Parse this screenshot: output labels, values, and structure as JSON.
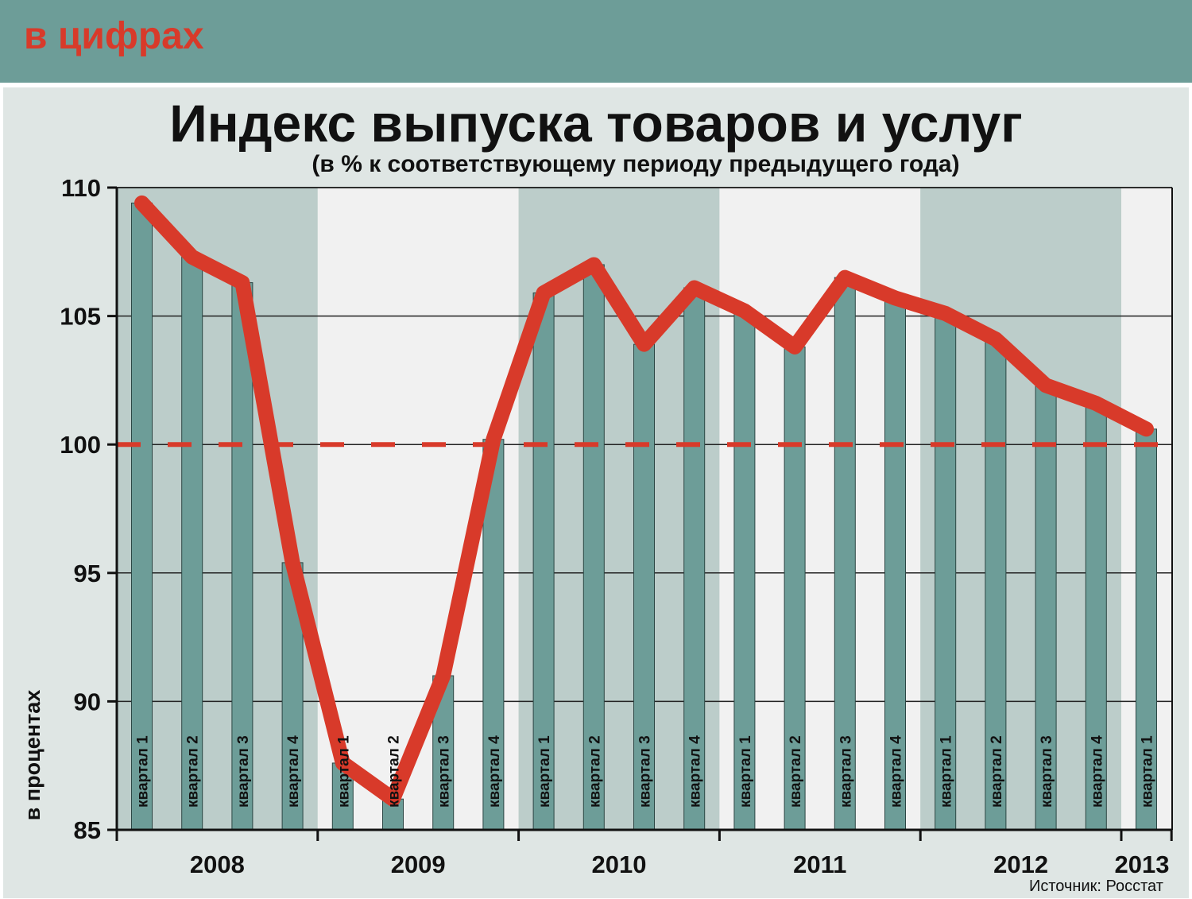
{
  "banner": {
    "label": "в цифрах"
  },
  "chart_data": {
    "type": "bar",
    "title": "Индекс выпуска товаров и услуг",
    "subtitle": "(в % к соответствующему периоду предыдущего года)",
    "ylabel": "в процентах",
    "xlabel": "",
    "ylim": [
      85,
      110
    ],
    "yticks": [
      85,
      90,
      95,
      100,
      105,
      110
    ],
    "reference_line": 100,
    "grid": true,
    "categories": [
      "квартал 1",
      "квартал 2",
      "квартал 3",
      "квартал 4",
      "квартал 1",
      "квартал 2",
      "квартал 3",
      "квартал 4",
      "квартал 1",
      "квартал 2",
      "квартал 3",
      "квартал 4",
      "квартал 1",
      "квартал 2",
      "квартал 3",
      "квартал 4",
      "квартал 1",
      "квартал 2",
      "квартал 3",
      "квартал 4",
      "квартал 1"
    ],
    "years": [
      {
        "label": "2008",
        "quarters": 4
      },
      {
        "label": "2009",
        "quarters": 4
      },
      {
        "label": "2010",
        "quarters": 4
      },
      {
        "label": "2011",
        "quarters": 4
      },
      {
        "label": "2012",
        "quarters": 4
      },
      {
        "label": "2013",
        "quarters": 1
      }
    ],
    "series": [
      {
        "type": "bar",
        "values": [
          109.4,
          107.3,
          106.3,
          95.4,
          87.6,
          86.2,
          91.0,
          100.2,
          105.9,
          107.0,
          103.9,
          106.1,
          105.2,
          103.8,
          106.5,
          105.7,
          105.1,
          104.1,
          102.3,
          101.6,
          100.6
        ]
      },
      {
        "type": "line",
        "values": [
          109.4,
          107.3,
          106.3,
          95.4,
          87.6,
          86.2,
          91.0,
          100.2,
          105.9,
          107.0,
          103.9,
          106.1,
          105.2,
          103.8,
          106.5,
          105.7,
          105.1,
          104.1,
          102.3,
          101.6,
          100.6
        ]
      }
    ],
    "colors": {
      "bar": "#6d9d98",
      "line": "#d83a2a",
      "band_dark": "#bccdca",
      "band_light": "#f1f1f1"
    },
    "source": "Источник: Росстат"
  }
}
